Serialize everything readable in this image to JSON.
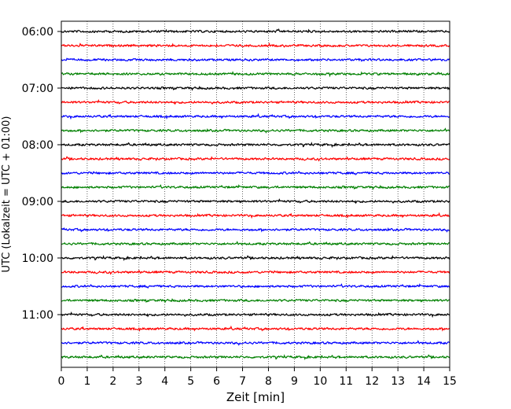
{
  "chart_data": {
    "type": "line",
    "title": "",
    "xlabel": "Zeit  [min]",
    "ylabel": "UTC (Lokalzeit = UTC + 01:00)",
    "xlim": [
      0,
      15
    ],
    "x_ticks": [
      0,
      1,
      2,
      3,
      4,
      5,
      6,
      7,
      8,
      9,
      10,
      11,
      12,
      13,
      14,
      15
    ],
    "y_tick_labels": [
      "06:00",
      "07:00",
      "08:00",
      "09:00",
      "10:00",
      "11:00"
    ],
    "trace_rows": [
      "06:00",
      "06:15",
      "06:30",
      "06:45",
      "07:00",
      "07:15",
      "07:30",
      "07:45",
      "08:00",
      "08:15",
      "08:30",
      "08:45",
      "09:00",
      "09:15",
      "09:30",
      "09:45",
      "10:00",
      "10:15",
      "10:30",
      "10:45",
      "11:00",
      "11:15",
      "11:30",
      "11:45"
    ],
    "trace_colors": [
      "#000000",
      "#ff0000",
      "#0000ff",
      "#008000"
    ],
    "grid": "vertical dotted",
    "legend": "none"
  }
}
